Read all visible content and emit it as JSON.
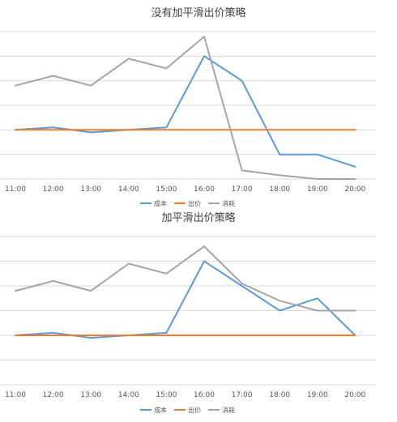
{
  "chart_data": [
    {
      "type": "line",
      "title": "没有加平滑出价策略",
      "categories": [
        "11:00",
        "12:00",
        "13:00",
        "14:00",
        "15:00",
        "16:00",
        "17:00",
        "18:00",
        "19:00",
        "20:00"
      ],
      "ylim": [
        0,
        7
      ],
      "grid": true,
      "legend_position": "bottom",
      "series": [
        {
          "name": "成本",
          "color": "#5b9bd5",
          "values": [
            2.0,
            2.1,
            1.9,
            2.0,
            2.1,
            5.0,
            4.0,
            1.0,
            1.0,
            0.5
          ]
        },
        {
          "name": "出价",
          "color": "#ed7d31",
          "values": [
            2.0,
            2.0,
            2.0,
            2.0,
            2.0,
            2.0,
            2.0,
            2.0,
            2.0,
            2.0
          ]
        },
        {
          "name": "消耗",
          "color": "#a5a5a5",
          "values": [
            3.8,
            4.2,
            3.8,
            4.9,
            4.5,
            5.8,
            0.35,
            0.15,
            0.0,
            0.0
          ]
        }
      ]
    },
    {
      "type": "line",
      "title": "加平滑出价策略",
      "categories": [
        "11:00",
        "12:00",
        "13:00",
        "14:00",
        "15:00",
        "16:00",
        "17:00",
        "18:00",
        "19:00",
        "20:00"
      ],
      "ylim": [
        0,
        7
      ],
      "grid": true,
      "legend_position": "bottom",
      "series": [
        {
          "name": "成本",
          "color": "#5b9bd5",
          "values": [
            2.0,
            2.1,
            1.9,
            2.0,
            2.1,
            5.0,
            4.0,
            3.0,
            3.5,
            2.0
          ]
        },
        {
          "name": "出价",
          "color": "#ed7d31",
          "values": [
            2.0,
            2.0,
            2.0,
            2.0,
            2.0,
            2.0,
            2.0,
            2.0,
            2.0,
            2.0
          ]
        },
        {
          "name": "消耗",
          "color": "#a5a5a5",
          "values": [
            3.8,
            4.2,
            3.8,
            4.9,
            4.5,
            5.6,
            4.1,
            3.4,
            3.0,
            3.0
          ]
        }
      ]
    }
  ]
}
